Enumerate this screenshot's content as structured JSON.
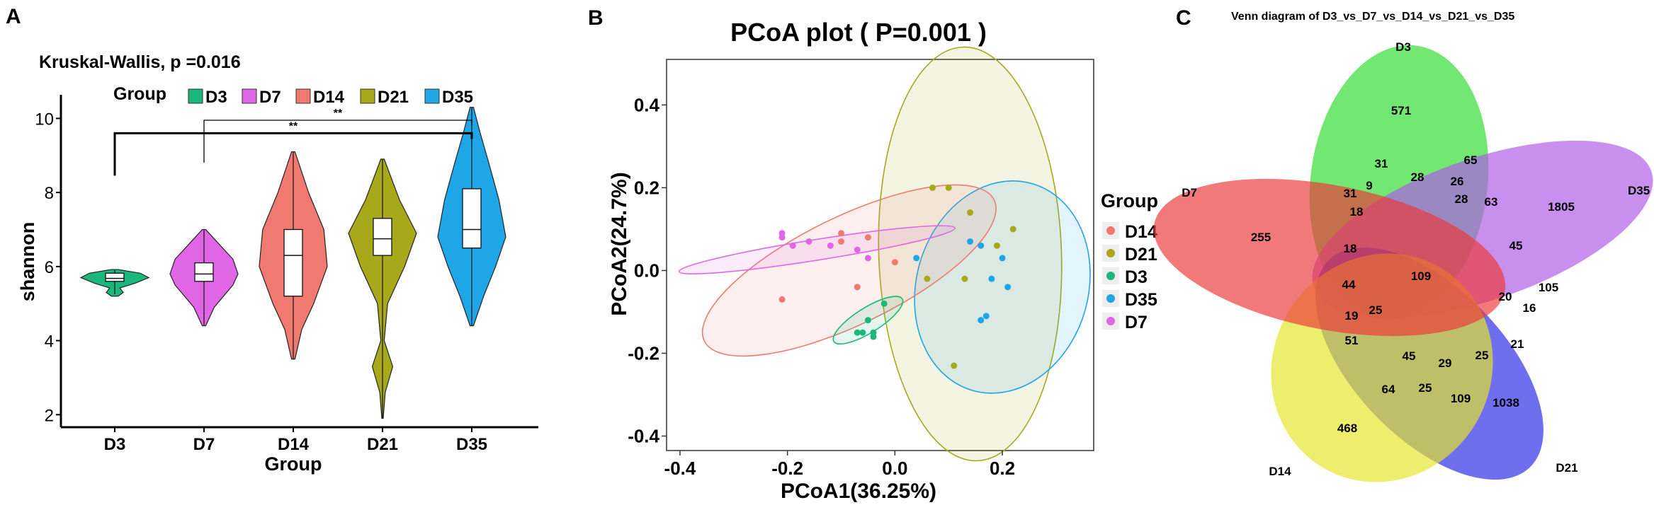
{
  "chart_data": [
    {
      "panel_label": "A",
      "type": "violin",
      "title": "Kruskal-Wallis, p =0.016",
      "legend_title": "Group",
      "xlabel": "Group",
      "ylabel": "shannon",
      "categories": [
        "D3",
        "D7",
        "D14",
        "D21",
        "D35"
      ],
      "colors": [
        "#1cb87b",
        "#e066e6",
        "#f07a70",
        "#a7a81a",
        "#1ea6e6"
      ],
      "ylim": [
        1.7,
        10.6
      ],
      "yticks": [
        2,
        4,
        6,
        8,
        10
      ],
      "groups": [
        {
          "name": "D3",
          "min": 5.25,
          "q1": 5.6,
          "median": 5.68,
          "q3": 5.82,
          "max": 5.9,
          "density": [
            [
              5.2,
              0.1
            ],
            [
              5.3,
              0.25
            ],
            [
              5.42,
              0.15
            ],
            [
              5.55,
              0.6
            ],
            [
              5.7,
              1.0
            ],
            [
              5.82,
              0.75
            ],
            [
              5.92,
              0.1
            ]
          ]
        },
        {
          "name": "D7",
          "min": 4.4,
          "q1": 5.6,
          "median": 5.8,
          "q3": 6.1,
          "max": 7.0,
          "density": [
            [
              4.4,
              0.05
            ],
            [
              4.9,
              0.3
            ],
            [
              5.5,
              0.85
            ],
            [
              5.8,
              1.0
            ],
            [
              6.2,
              0.85
            ],
            [
              6.7,
              0.35
            ],
            [
              7.0,
              0.05
            ]
          ]
        },
        {
          "name": "D14",
          "min": 3.5,
          "q1": 5.2,
          "median": 6.3,
          "q3": 7.0,
          "max": 9.1,
          "density": [
            [
              3.5,
              0.05
            ],
            [
              4.3,
              0.25
            ],
            [
              5.0,
              0.6
            ],
            [
              6.0,
              1.0
            ],
            [
              7.0,
              0.9
            ],
            [
              8.0,
              0.45
            ],
            [
              9.1,
              0.05
            ]
          ]
        },
        {
          "name": "D21",
          "min": 1.9,
          "q1": 6.3,
          "median": 6.75,
          "q3": 7.3,
          "max": 8.9,
          "density": [
            [
              1.9,
              0.02
            ],
            [
              2.6,
              0.08
            ],
            [
              3.3,
              0.3
            ],
            [
              4.0,
              0.05
            ],
            [
              5.0,
              0.15
            ],
            [
              6.0,
              0.65
            ],
            [
              6.9,
              1.0
            ],
            [
              7.8,
              0.5
            ],
            [
              8.9,
              0.05
            ]
          ]
        },
        {
          "name": "D35",
          "min": 4.4,
          "q1": 6.5,
          "median": 7.0,
          "q3": 8.1,
          "max": 10.3,
          "density": [
            [
              4.4,
              0.05
            ],
            [
              5.2,
              0.35
            ],
            [
              6.0,
              0.7
            ],
            [
              6.8,
              1.0
            ],
            [
              7.8,
              0.8
            ],
            [
              8.8,
              0.5
            ],
            [
              9.6,
              0.25
            ],
            [
              10.3,
              0.05
            ]
          ]
        }
      ],
      "significance": [
        {
          "from": "D7",
          "to": "D35",
          "label": "**",
          "y": 9.95
        },
        {
          "from": "D3",
          "to": "D35",
          "label": "**",
          "y": 9.6
        }
      ]
    },
    {
      "panel_label": "B",
      "type": "scatter",
      "title": "PCoA plot ( P=0.001 )",
      "xlabel": "PCoA1(36.25%)",
      "ylabel": "PCoA2(24.7%)",
      "xlim": [
        -0.425,
        0.37
      ],
      "ylim": [
        -0.435,
        0.51
      ],
      "xticks": [
        -0.4,
        -0.2,
        0.0,
        0.2
      ],
      "xtick_labels": [
        "-0.4",
        "-0.2",
        "0.0",
        "0.2"
      ],
      "yticks": [
        -0.4,
        -0.2,
        0.0,
        0.2,
        0.4
      ],
      "ytick_labels": [
        "-0.4",
        "-0.2",
        "0.0",
        "0.2",
        "0.4"
      ],
      "legend_title": "Group",
      "series": [
        {
          "name": "D14",
          "color": "#f07a70",
          "points": [
            [
              -0.21,
              -0.07
            ],
            [
              -0.1,
              0.07
            ],
            [
              -0.07,
              -0.04
            ],
            [
              -0.05,
              0.08
            ],
            [
              -0.1,
              0.09
            ],
            [
              0.0,
              0.02
            ]
          ],
          "ellipse": {
            "cx": -0.085,
            "cy": 0.0,
            "rx": 0.3,
            "ry": 0.13,
            "angle": 26
          }
        },
        {
          "name": "D21",
          "color": "#a7a81a",
          "points": [
            [
              0.07,
              0.2
            ],
            [
              0.1,
              0.2
            ],
            [
              0.14,
              0.14
            ],
            [
              0.22,
              0.1
            ],
            [
              0.19,
              0.06
            ],
            [
              0.13,
              -0.02
            ],
            [
              0.11,
              -0.23
            ],
            [
              0.06,
              -0.02
            ]
          ],
          "ellipse": {
            "cx": 0.14,
            "cy": 0.04,
            "rx": 0.17,
            "ry": 0.5,
            "angle": 2
          }
        },
        {
          "name": "D3",
          "color": "#1cb87b",
          "points": [
            [
              -0.07,
              -0.15
            ],
            [
              -0.06,
              -0.15
            ],
            [
              -0.04,
              -0.15
            ],
            [
              -0.04,
              -0.16
            ],
            [
              -0.05,
              -0.12
            ],
            [
              -0.02,
              -0.08
            ]
          ],
          "ellipse": {
            "cx": -0.05,
            "cy": -0.12,
            "rx": 0.075,
            "ry": 0.03,
            "angle": 32
          }
        },
        {
          "name": "D35",
          "color": "#1ea6e6",
          "points": [
            [
              0.14,
              0.07
            ],
            [
              0.16,
              0.06
            ],
            [
              0.2,
              0.03
            ],
            [
              0.18,
              -0.02
            ],
            [
              0.21,
              -0.04
            ],
            [
              0.17,
              -0.11
            ],
            [
              0.16,
              -0.12
            ],
            [
              0.04,
              0.03
            ]
          ],
          "ellipse": {
            "cx": 0.2,
            "cy": -0.04,
            "rx": 0.16,
            "ry": 0.26,
            "angle": -16
          }
        },
        {
          "name": "D7",
          "color": "#e066e6",
          "points": [
            [
              -0.21,
              0.09
            ],
            [
              -0.21,
              0.08
            ],
            [
              -0.19,
              0.06
            ],
            [
              -0.16,
              0.07
            ],
            [
              -0.05,
              0.03
            ],
            [
              -0.12,
              0.06
            ],
            [
              -0.07,
              0.05
            ]
          ],
          "ellipse": {
            "cx": -0.145,
            "cy": 0.05,
            "rx": 0.26,
            "ry": 0.025,
            "angle": 9
          }
        }
      ]
    },
    {
      "panel_label": "C",
      "type": "venn",
      "title": "Venn diagram of D3_vs_D7_vs_D14_vs_D21_vs_D35",
      "sets": [
        {
          "name": "D3",
          "color": "#2fdc2f"
        },
        {
          "name": "D35",
          "color": "#b05ae8"
        },
        {
          "name": "D21",
          "color": "#2a2ae6"
        },
        {
          "name": "D14",
          "color": "#e6e62a"
        },
        {
          "name": "D7",
          "color": "#ec3a3a"
        }
      ],
      "values": [
        "571",
        "31",
        "65",
        "28",
        "26",
        "63",
        "1805",
        "31",
        "9",
        "18",
        "28",
        "255",
        "18",
        "45",
        "109",
        "105",
        "44",
        "20",
        "16",
        "19",
        "25",
        "21",
        "51",
        "45",
        "29",
        "25",
        "64",
        "25",
        "109",
        "468",
        "1038"
      ]
    }
  ]
}
